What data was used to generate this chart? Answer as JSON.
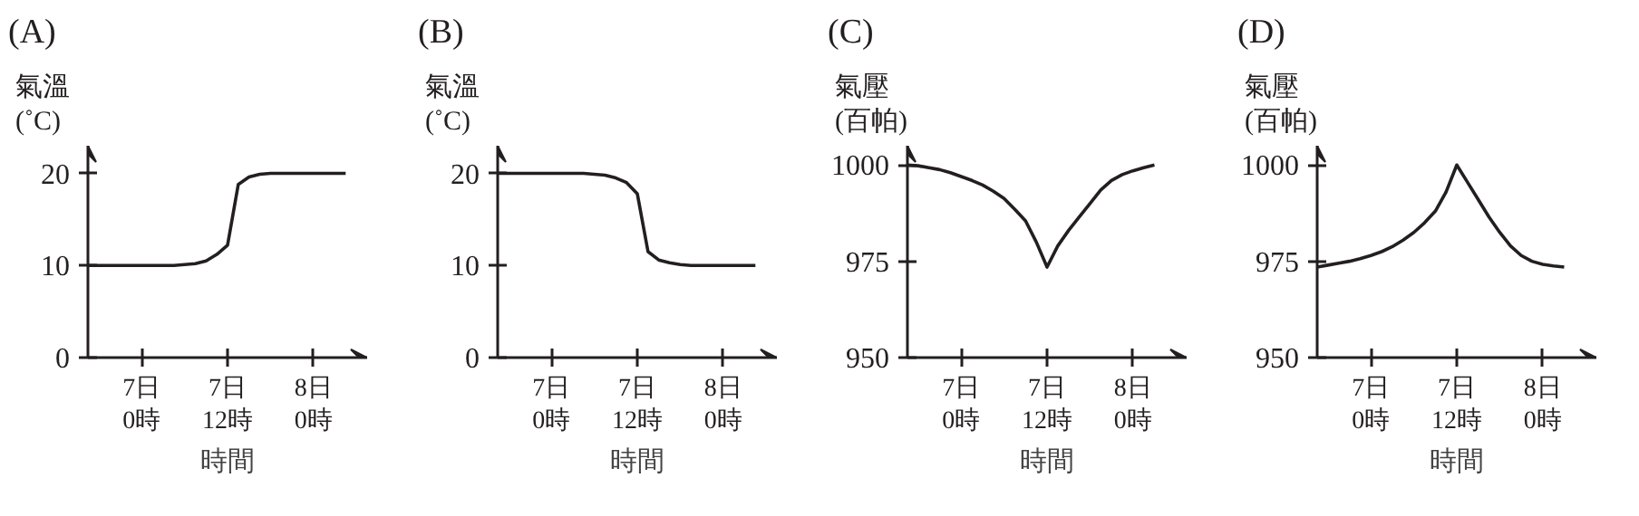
{
  "chart_data": [
    {
      "type": "line",
      "title": "(A)",
      "ylabel": "氣溫\n(˚C)",
      "xlabel": "時間",
      "categories": [
        null,
        null,
        null,
        null,
        null,
        "7日\n0時",
        null,
        null,
        null,
        null,
        null,
        null,
        null,
        "7日\n12時",
        null,
        null,
        null,
        null,
        null,
        null,
        null,
        "8日\n0時",
        null,
        null,
        null
      ],
      "series": [
        {
          "color": "#231f20",
          "values": [
            10,
            10,
            10,
            10,
            10,
            10,
            10,
            10,
            10,
            10.1,
            10.2,
            10.5,
            11.2,
            12.2,
            18.8,
            19.6,
            19.9,
            20,
            20,
            20,
            20,
            20,
            20,
            20,
            20
          ]
        }
      ],
      "ylim": [
        0,
        23
      ],
      "yticks": [
        0,
        10,
        20
      ]
    },
    {
      "type": "line",
      "title": "(B)",
      "ylabel": "氣溫\n(˚C)",
      "xlabel": "時間",
      "categories": [
        null,
        null,
        null,
        null,
        null,
        "7日\n0時",
        null,
        null,
        null,
        null,
        null,
        null,
        null,
        "7日\n12時",
        null,
        null,
        null,
        null,
        null,
        null,
        null,
        "8日\n0時",
        null,
        null,
        null
      ],
      "series": [
        {
          "color": "#231f20",
          "values": [
            20,
            20,
            20,
            20,
            20,
            20,
            20,
            20,
            20,
            19.9,
            19.8,
            19.5,
            19,
            17.8,
            11.5,
            10.6,
            10.3,
            10.1,
            10,
            10,
            10,
            10,
            10,
            10,
            10
          ]
        }
      ],
      "ylim": [
        0,
        23
      ],
      "yticks": [
        0,
        10,
        20
      ]
    },
    {
      "type": "line",
      "title": "(C)",
      "ylabel": "氣壓\n(百帕)",
      "xlabel": "時間",
      "categories": [
        null,
        null,
        null,
        null,
        null,
        "7日\n0時",
        null,
        null,
        null,
        null,
        null,
        null,
        null,
        "7日\n12時",
        null,
        null,
        null,
        null,
        null,
        null,
        null,
        "8日\n0時",
        null,
        null,
        null
      ],
      "series": [
        {
          "color": "#231f20",
          "values": [
            1000,
            999.8,
            999.3,
            998.8,
            998,
            997,
            996,
            994.8,
            993.2,
            991.3,
            988.5,
            985.5,
            980,
            973.5,
            979,
            983,
            986.5,
            990,
            993.5,
            996,
            997.5,
            998.5,
            999.3,
            1000,
            null
          ]
        }
      ],
      "ylim": [
        950,
        1005
      ],
      "yticks": [
        950,
        975,
        1000
      ]
    },
    {
      "type": "line",
      "title": "(D)",
      "ylabel": "氣壓\n(百帕)",
      "xlabel": "時間",
      "categories": [
        null,
        null,
        null,
        null,
        null,
        "7日\n0時",
        null,
        null,
        null,
        null,
        null,
        null,
        null,
        "7日\n12時",
        null,
        null,
        null,
        null,
        null,
        null,
        null,
        "8日\n0時",
        null,
        null,
        null
      ],
      "series": [
        {
          "color": "#231f20",
          "values": [
            973.5,
            974,
            974.5,
            975,
            975.7,
            976.5,
            977.5,
            978.8,
            980.5,
            982.5,
            985,
            988,
            993,
            1000,
            995.5,
            991,
            986.5,
            982.5,
            979,
            976.5,
            975,
            974.2,
            973.8,
            973.5,
            null
          ]
        }
      ],
      "ylim": [
        950,
        1005
      ],
      "yticks": [
        950,
        975,
        1000
      ]
    }
  ]
}
